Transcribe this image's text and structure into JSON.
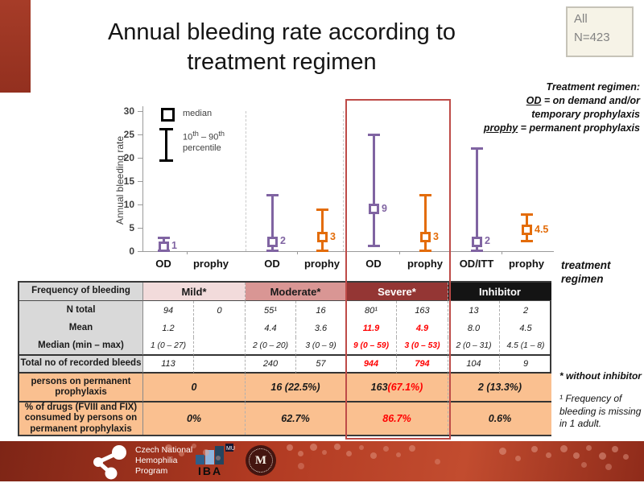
{
  "slide": {
    "title_line1": "Annual bleeding rate according to",
    "title_line2": "treatment regimen",
    "all_box": {
      "line1": "All",
      "line2": "N=423"
    },
    "regimen_note": {
      "title": "Treatment regimen:",
      "l2_u": "OD",
      "l2_rest": " = on demand and/or",
      "l3": "temporary prophylaxis",
      "l4_u": "prophy",
      "l4_rest": " = permanent prophylaxis"
    },
    "axis_label_line1": "treatment",
    "axis_label_line2": "regimen",
    "footnotes": {
      "asterisk": "* without inhibitor",
      "missing": "¹ Frequency of bleeding is missing in 1 adult."
    }
  },
  "chart_data": {
    "type": "scatter",
    "title": "Annual bleeding rate according to treatment regimen",
    "ylabel": "Annual bleeding rate",
    "xlabel": "treatment regimen",
    "ylim": [
      0,
      30
    ],
    "yticks": [
      0,
      5,
      10,
      15,
      20,
      25,
      30
    ],
    "grid": false,
    "legend_position": "upper-left",
    "x_labels": [
      "OD",
      "prophy",
      "OD",
      "prophy",
      "OD",
      "prophy",
      "OD/ITT",
      "prophy"
    ],
    "groups": [
      "Mild",
      "Mild",
      "Moderate",
      "Moderate",
      "Severe",
      "Severe",
      "Inhibitor",
      "Inhibitor"
    ],
    "legend": {
      "median": "median",
      "pct_from": "10",
      "sup1": "th",
      "dash": " – ",
      "pct_to": "90",
      "sup2": "th",
      "line2": "percentile"
    },
    "points": [
      {
        "x_index": 0,
        "severity": "Mild",
        "regimen": "OD",
        "median": 1,
        "p10": 0,
        "p90": 3,
        "label": "1",
        "color": "#8064A2"
      },
      {
        "x_index": 2,
        "severity": "Moderate",
        "regimen": "OD",
        "median": 2,
        "p10": 0,
        "p90": 12,
        "label": "2",
        "color": "#8064A2"
      },
      {
        "x_index": 3,
        "severity": "Moderate",
        "regimen": "prophy",
        "median": 3,
        "p10": 0,
        "p90": 9,
        "label": "3",
        "color": "#E36C09"
      },
      {
        "x_index": 4,
        "severity": "Severe",
        "regimen": "OD",
        "median": 9,
        "p10": 1,
        "p90": 25,
        "label": "9",
        "color": "#8064A2"
      },
      {
        "x_index": 5,
        "severity": "Severe",
        "regimen": "prophy",
        "median": 3,
        "p10": 0,
        "p90": 12,
        "label": "3",
        "color": "#E36C09"
      },
      {
        "x_index": 6,
        "severity": "Inhibitor",
        "regimen": "OD/ITT",
        "median": 2,
        "p10": 0,
        "p90": 22,
        "label": "2",
        "color": "#8064A2"
      },
      {
        "x_index": 7,
        "severity": "Inhibitor",
        "regimen": "prophy",
        "median": 4.5,
        "p10": 2,
        "p90": 8,
        "label": "4.5",
        "color": "#E36C09"
      }
    ]
  },
  "table": {
    "header": [
      "Frequency of bleeding",
      "Mild*",
      "Moderate*",
      "Severe*",
      "Inhibitor"
    ],
    "rows": {
      "n_total": {
        "label": "N total",
        "values": [
          "94",
          "0",
          "55¹",
          "16",
          "80¹",
          "163",
          "13",
          "2"
        ]
      },
      "mean": {
        "label": "Mean",
        "values": [
          "1.2",
          "",
          "4.4",
          "3.6",
          "11.9",
          "4.9",
          "8.0",
          "4.5"
        ]
      },
      "median": {
        "label": "Median (min – max)",
        "values": [
          "1 (0 – 27)",
          "",
          "2 (0 – 20)",
          "3 (0 – 9)",
          "9 (0 – 59)",
          "3 (0 – 53)",
          "2 (0 – 31)",
          "4.5 (1 – 8)"
        ]
      },
      "bleeds": {
        "label": "Total no of recorded bleeds",
        "values": [
          "113",
          "",
          "240",
          "57",
          "944",
          "794",
          "104",
          "9"
        ]
      },
      "persons": {
        "label": "persons on permanent prophylaxis",
        "values": [
          "0",
          "16 (22.5%)",
          "163 ",
          "2 (13.3%)"
        ],
        "severe_pct": "(67.1%)"
      },
      "drugs": {
        "label": "% of drugs (FVIII and FIX) consumed by persons on permanent prophylaxis",
        "values": [
          "0%",
          "62.7%",
          "86.7%",
          "0.6%"
        ]
      }
    }
  },
  "footer": {
    "cnhp": [
      "Czech National",
      "Hemophilia",
      "Program"
    ],
    "iba_label": "IBA",
    "mu_label": "MU"
  }
}
